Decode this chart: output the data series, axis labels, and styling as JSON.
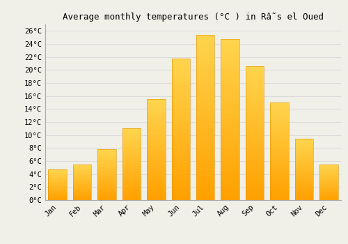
{
  "title": "Average monthly temperatures (°C ) in Râ˜s el Oued",
  "months": [
    "Jan",
    "Feb",
    "Mar",
    "Apr",
    "May",
    "Jun",
    "Jul",
    "Aug",
    "Sep",
    "Oct",
    "Nov",
    "Dec"
  ],
  "values": [
    4.7,
    5.5,
    7.8,
    11.0,
    15.5,
    21.8,
    25.4,
    24.8,
    20.6,
    15.0,
    9.4,
    5.5
  ],
  "bar_color_top": "#FFD54F",
  "bar_color_bottom": "#FFA000",
  "background_color": "#F0EFE8",
  "grid_color": "#D8D8D8",
  "ylim": [
    0,
    27
  ],
  "ytick_vals": [
    0,
    2,
    4,
    6,
    8,
    10,
    12,
    14,
    16,
    18,
    20,
    22,
    24,
    26
  ],
  "title_fontsize": 9,
  "tick_fontsize": 7.5,
  "font_family": "monospace"
}
